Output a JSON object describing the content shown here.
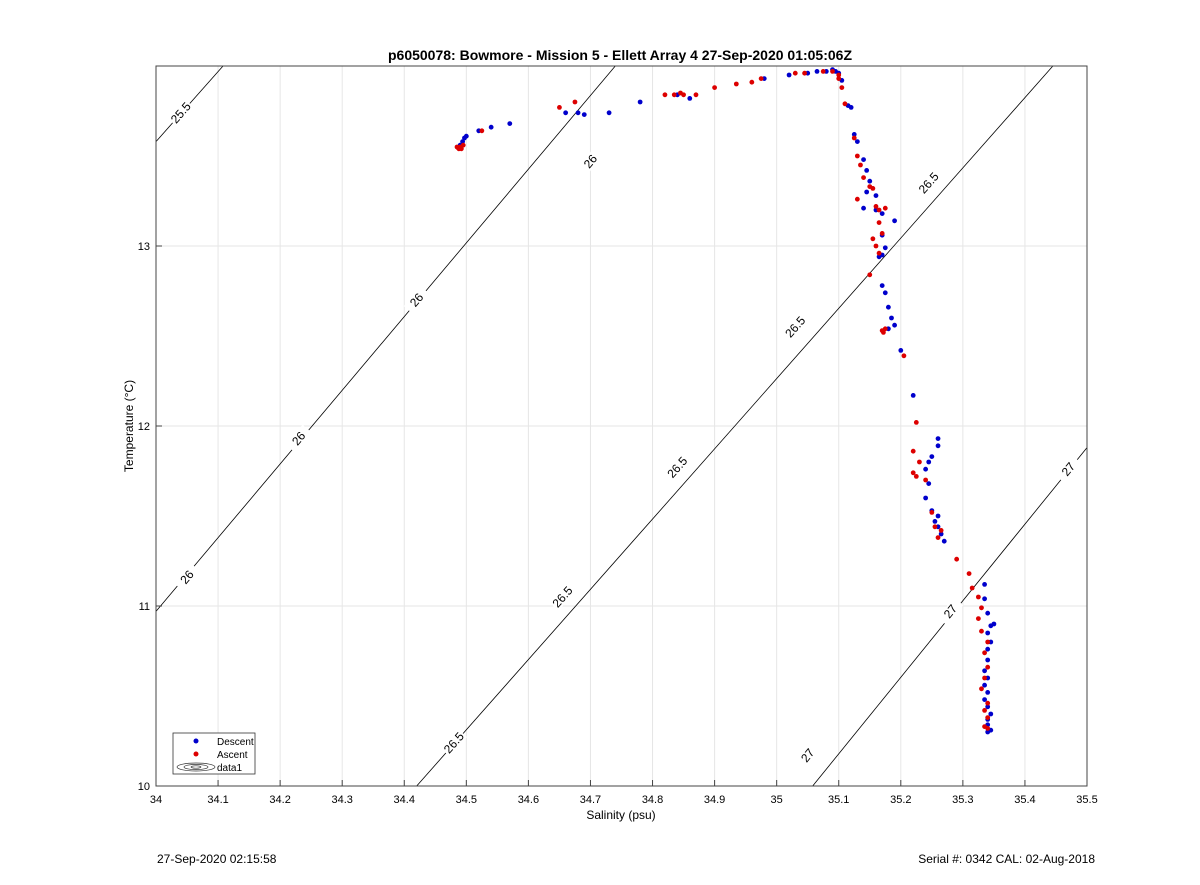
{
  "chart_data": {
    "type": "scatter",
    "title": "p6050078: Bowmore - Mission 5 - Ellett Array 4 27-Sep-2020 01:05:06Z",
    "xlabel": "Salinity (psu)",
    "ylabel": "Temperature (°C)",
    "xlim": [
      34,
      35.5
    ],
    "ylim": [
      10,
      14
    ],
    "xticks": [
      "34",
      "34.1",
      "34.2",
      "34.3",
      "34.4",
      "34.5",
      "34.6",
      "34.7",
      "34.8",
      "34.9",
      "35",
      "35.1",
      "35.2",
      "35.3",
      "35.4",
      "35.5"
    ],
    "yticks": [
      "10",
      "11",
      "12",
      "13"
    ],
    "grid": true,
    "legend_position": "bottom-left",
    "legend": [
      "Descent",
      "Ascent",
      "data1"
    ],
    "colors": {
      "descent": "#0000cc",
      "ascent": "#dd0000",
      "contour": "#000000",
      "grid": "#e6e6e6"
    },
    "contours": [
      {
        "level": "25.5",
        "points": [
          [
            34.0,
            13.58
          ],
          [
            34.108,
            14.0
          ]
        ],
        "labels": [
          [
            34.04,
            13.74
          ]
        ]
      },
      {
        "level": "26",
        "points": [
          [
            34.0,
            10.97
          ],
          [
            34.74,
            14.0
          ]
        ],
        "labels": [
          [
            34.7,
            13.47
          ],
          [
            34.42,
            12.7
          ],
          [
            34.23,
            11.93
          ],
          [
            34.05,
            11.16
          ]
        ]
      },
      {
        "level": "26.5",
        "points": [
          [
            34.42,
            10.0
          ],
          [
            35.445,
            14.0
          ]
        ],
        "labels": [
          [
            35.245,
            13.35
          ],
          [
            35.03,
            12.55
          ],
          [
            34.84,
            11.77
          ],
          [
            34.655,
            11.05
          ],
          [
            34.48,
            10.24
          ]
        ]
      },
      {
        "level": "27",
        "points": [
          [
            35.058,
            10.0
          ],
          [
            35.5,
            11.88
          ]
        ],
        "labels": [
          [
            35.47,
            11.76
          ],
          [
            35.28,
            10.97
          ],
          [
            35.05,
            10.17
          ]
        ]
      }
    ],
    "series": [
      {
        "name": "Descent",
        "points": [
          [
            34.49,
            13.56
          ],
          [
            34.494,
            13.58
          ],
          [
            34.497,
            13.6
          ],
          [
            34.5,
            13.61
          ],
          [
            34.52,
            13.64
          ],
          [
            34.54,
            13.66
          ],
          [
            34.57,
            13.68
          ],
          [
            34.66,
            13.74
          ],
          [
            34.68,
            13.74
          ],
          [
            34.69,
            13.73
          ],
          [
            34.73,
            13.74
          ],
          [
            34.78,
            13.8
          ],
          [
            34.84,
            13.84
          ],
          [
            34.86,
            13.82
          ],
          [
            34.98,
            13.93
          ],
          [
            35.02,
            13.95
          ],
          [
            35.05,
            13.96
          ],
          [
            35.065,
            13.97
          ],
          [
            35.08,
            13.97
          ],
          [
            35.09,
            13.98
          ],
          [
            35.095,
            13.97
          ],
          [
            35.1,
            13.96
          ],
          [
            35.105,
            13.92
          ],
          [
            35.115,
            13.78
          ],
          [
            35.12,
            13.77
          ],
          [
            35.125,
            13.62
          ],
          [
            35.13,
            13.58
          ],
          [
            35.14,
            13.48
          ],
          [
            35.145,
            13.42
          ],
          [
            35.15,
            13.36
          ],
          [
            35.145,
            13.3
          ],
          [
            35.16,
            13.28
          ],
          [
            35.14,
            13.21
          ],
          [
            35.16,
            13.2
          ],
          [
            35.17,
            13.18
          ],
          [
            35.19,
            13.14
          ],
          [
            35.17,
            13.06
          ],
          [
            35.175,
            12.99
          ],
          [
            35.17,
            12.95
          ],
          [
            35.165,
            12.94
          ],
          [
            35.17,
            12.78
          ],
          [
            35.175,
            12.74
          ],
          [
            35.18,
            12.66
          ],
          [
            35.185,
            12.6
          ],
          [
            35.19,
            12.56
          ],
          [
            35.18,
            12.54
          ],
          [
            35.2,
            12.42
          ],
          [
            35.22,
            12.17
          ],
          [
            35.26,
            11.93
          ],
          [
            35.26,
            11.89
          ],
          [
            35.25,
            11.83
          ],
          [
            35.245,
            11.8
          ],
          [
            35.24,
            11.76
          ],
          [
            35.245,
            11.68
          ],
          [
            35.24,
            11.6
          ],
          [
            35.25,
            11.53
          ],
          [
            35.26,
            11.5
          ],
          [
            35.255,
            11.47
          ],
          [
            35.26,
            11.44
          ],
          [
            35.265,
            11.4
          ],
          [
            35.27,
            11.36
          ],
          [
            35.335,
            11.12
          ],
          [
            35.335,
            11.04
          ],
          [
            35.34,
            10.96
          ],
          [
            35.35,
            10.9
          ],
          [
            35.345,
            10.89
          ],
          [
            35.34,
            10.85
          ],
          [
            35.345,
            10.8
          ],
          [
            35.34,
            10.76
          ],
          [
            35.34,
            10.7
          ],
          [
            35.335,
            10.64
          ],
          [
            35.34,
            10.6
          ],
          [
            35.335,
            10.56
          ],
          [
            35.34,
            10.52
          ],
          [
            35.335,
            10.48
          ],
          [
            35.34,
            10.44
          ],
          [
            35.345,
            10.4
          ],
          [
            35.34,
            10.37
          ],
          [
            35.34,
            10.34
          ],
          [
            35.345,
            10.31
          ],
          [
            35.34,
            10.3
          ]
        ]
      },
      {
        "name": "Ascent",
        "points": [
          [
            34.485,
            13.55
          ],
          [
            34.488,
            13.54
          ],
          [
            34.49,
            13.55
          ],
          [
            34.492,
            13.54
          ],
          [
            34.495,
            13.56
          ],
          [
            34.487,
            13.545
          ],
          [
            34.525,
            13.64
          ],
          [
            34.65,
            13.77
          ],
          [
            34.675,
            13.8
          ],
          [
            34.82,
            13.84
          ],
          [
            34.835,
            13.84
          ],
          [
            34.845,
            13.85
          ],
          [
            34.85,
            13.84
          ],
          [
            34.87,
            13.84
          ],
          [
            34.9,
            13.88
          ],
          [
            34.935,
            13.9
          ],
          [
            34.96,
            13.91
          ],
          [
            34.975,
            13.93
          ],
          [
            35.03,
            13.96
          ],
          [
            35.045,
            13.96
          ],
          [
            35.075,
            13.97
          ],
          [
            35.09,
            13.97
          ],
          [
            35.1,
            13.95
          ],
          [
            35.1,
            13.93
          ],
          [
            35.105,
            13.88
          ],
          [
            35.11,
            13.79
          ],
          [
            35.125,
            13.6
          ],
          [
            35.13,
            13.5
          ],
          [
            35.135,
            13.45
          ],
          [
            35.14,
            13.38
          ],
          [
            35.15,
            13.33
          ],
          [
            35.155,
            13.32
          ],
          [
            35.13,
            13.26
          ],
          [
            35.16,
            13.22
          ],
          [
            35.165,
            13.2
          ],
          [
            35.175,
            13.21
          ],
          [
            35.165,
            13.13
          ],
          [
            35.17,
            13.07
          ],
          [
            35.155,
            13.04
          ],
          [
            35.16,
            13.0
          ],
          [
            35.165,
            12.96
          ],
          [
            35.15,
            12.84
          ],
          [
            35.17,
            12.53
          ],
          [
            35.175,
            12.54
          ],
          [
            35.172,
            12.52
          ],
          [
            35.205,
            12.39
          ],
          [
            35.225,
            12.02
          ],
          [
            35.22,
            11.86
          ],
          [
            35.23,
            11.8
          ],
          [
            35.22,
            11.74
          ],
          [
            35.225,
            11.72
          ],
          [
            35.24,
            11.7
          ],
          [
            35.25,
            11.52
          ],
          [
            35.255,
            11.44
          ],
          [
            35.265,
            11.42
          ],
          [
            35.26,
            11.38
          ],
          [
            35.29,
            11.26
          ],
          [
            35.31,
            11.18
          ],
          [
            35.315,
            11.1
          ],
          [
            35.325,
            11.05
          ],
          [
            35.33,
            10.99
          ],
          [
            35.325,
            10.93
          ],
          [
            35.33,
            10.86
          ],
          [
            35.34,
            10.8
          ],
          [
            35.335,
            10.74
          ],
          [
            35.34,
            10.66
          ],
          [
            35.335,
            10.6
          ],
          [
            35.33,
            10.54
          ],
          [
            35.34,
            10.46
          ],
          [
            35.335,
            10.42
          ],
          [
            35.34,
            10.38
          ],
          [
            35.335,
            10.33
          ],
          [
            35.34,
            10.32
          ]
        ]
      }
    ]
  },
  "footer": {
    "timestamp": "27-Sep-2020 02:15:58",
    "serial": "Serial #: 0342  CAL: 02-Aug-2018"
  }
}
